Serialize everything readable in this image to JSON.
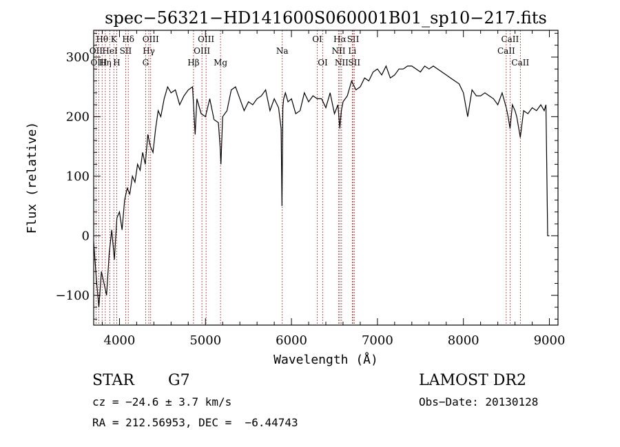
{
  "chart_data": {
    "type": "line",
    "title": "spec−56321−HD141600S060001B01_sp10−217.fits",
    "xlabel": "Wavelength (Å)",
    "ylabel": "Flux (relative)",
    "xlim": [
      3700,
      9100
    ],
    "ylim": [
      -150,
      345
    ],
    "xticks": [
      4000,
      5000,
      6000,
      7000,
      8000,
      9000
    ],
    "yticks": [
      -100,
      0,
      100,
      200,
      300
    ],
    "grid": false,
    "series": [
      {
        "x": [
          3700,
          3730,
          3760,
          3790,
          3820,
          3850,
          3880,
          3910,
          3940,
          3970,
          4000,
          4030,
          4060,
          4090,
          4120,
          4150,
          4180,
          4210,
          4240,
          4270,
          4300,
          4330,
          4360,
          4390,
          4420,
          4450,
          4480,
          4520,
          4560,
          4600,
          4650,
          4700,
          4750,
          4800,
          4850,
          4880,
          4900,
          4950,
          5000,
          5050,
          5100,
          5150,
          5170,
          5180,
          5200,
          5250,
          5300,
          5350,
          5400,
          5450,
          5500,
          5550,
          5600,
          5650,
          5700,
          5750,
          5800,
          5850,
          5880,
          5890,
          5900,
          5910,
          5930,
          5960,
          6000,
          6050,
          6100,
          6150,
          6200,
          6250,
          6300,
          6350,
          6400,
          6450,
          6500,
          6540,
          6563,
          6580,
          6600,
          6650,
          6700,
          6750,
          6800,
          6850,
          6900,
          6950,
          7000,
          7050,
          7100,
          7150,
          7200,
          7250,
          7300,
          7350,
          7400,
          7450,
          7500,
          7550,
          7600,
          7650,
          7700,
          7750,
          7800,
          7850,
          7900,
          7950,
          8000,
          8050,
          8100,
          8150,
          8200,
          8250,
          8300,
          8350,
          8400,
          8450,
          8498,
          8520,
          8542,
          8570,
          8600,
          8620,
          8662,
          8700,
          8750,
          8800,
          8850,
          8900,
          8940,
          8960,
          8980,
          9000
        ],
        "y": [
          -10,
          -70,
          -120,
          -60,
          -80,
          -100,
          -30,
          10,
          -40,
          30,
          40,
          10,
          60,
          80,
          70,
          100,
          90,
          120,
          110,
          140,
          120,
          170,
          150,
          140,
          180,
          210,
          200,
          230,
          250,
          240,
          245,
          220,
          235,
          245,
          250,
          170,
          230,
          205,
          200,
          230,
          195,
          190,
          150,
          120,
          200,
          210,
          245,
          250,
          230,
          210,
          225,
          220,
          230,
          235,
          245,
          210,
          230,
          215,
          180,
          50,
          215,
          230,
          240,
          225,
          230,
          205,
          210,
          240,
          225,
          235,
          230,
          230,
          215,
          240,
          205,
          220,
          180,
          210,
          225,
          235,
          260,
          245,
          250,
          265,
          260,
          275,
          280,
          270,
          285,
          265,
          270,
          280,
          280,
          285,
          285,
          280,
          275,
          285,
          280,
          285,
          280,
          275,
          270,
          265,
          260,
          255,
          240,
          200,
          245,
          235,
          235,
          240,
          235,
          230,
          220,
          240,
          215,
          200,
          180,
          220,
          210,
          200,
          165,
          210,
          205,
          215,
          210,
          220,
          210,
          220,
          0,
          0
        ]
      }
    ],
    "spectral_lines": [
      {
        "label": "Hθ",
        "wavelength": 3798,
        "row": 0
      },
      {
        "label": "OII",
        "wavelength": 3727,
        "row": 1
      },
      {
        "label": "OIII",
        "wavelength": 3760,
        "row": 2
      },
      {
        "label": "Hη",
        "wavelength": 3835,
        "row": 2
      },
      {
        "label": "K",
        "wavelength": 3934,
        "row": 0
      },
      {
        "label": "HeI",
        "wavelength": 3889,
        "row": 1
      },
      {
        "label": "H",
        "wavelength": 3968,
        "row": 2
      },
      {
        "label": "SII",
        "wavelength": 4072,
        "row": 1
      },
      {
        "label": "Hδ",
        "wavelength": 4102,
        "row": 0
      },
      {
        "label": "OIII",
        "wavelength": 4363,
        "row": 0
      },
      {
        "label": "Hγ",
        "wavelength": 4341,
        "row": 1
      },
      {
        "label": "G",
        "wavelength": 4304,
        "row": 2
      },
      {
        "label": "Hβ",
        "wavelength": 4861,
        "row": 2
      },
      {
        "label": "OIII",
        "wavelength": 5007,
        "row": 0
      },
      {
        "label": "OIII",
        "wavelength": 4959,
        "row": 1
      },
      {
        "label": "Mg",
        "wavelength": 5175,
        "row": 2
      },
      {
        "label": "Na",
        "wavelength": 5893,
        "row": 1
      },
      {
        "label": "OI",
        "wavelength": 6300,
        "row": 0
      },
      {
        "label": "OI",
        "wavelength": 6364,
        "row": 2
      },
      {
        "label": "Hα",
        "wavelength": 6563,
        "row": 0
      },
      {
        "label": "NII",
        "wavelength": 6548,
        "row": 1
      },
      {
        "label": "NII",
        "wavelength": 6583,
        "row": 2
      },
      {
        "label": "SII",
        "wavelength": 6717,
        "row": 0
      },
      {
        "label": "Li",
        "wavelength": 6707,
        "row": 1
      },
      {
        "label": "SII",
        "wavelength": 6731,
        "row": 2
      },
      {
        "label": "CaII",
        "wavelength": 8542,
        "row": 0
      },
      {
        "label": "CaII",
        "wavelength": 8498,
        "row": 1
      },
      {
        "label": "CaII",
        "wavelength": 8662,
        "row": 2
      }
    ]
  },
  "info": {
    "class": "STAR",
    "subclass": "G7",
    "cz": "cz = −24.6 ± 3.7 km/s",
    "radec": "RA = 212.56953, DEC =  −6.44743",
    "survey": "LAMOST DR2",
    "obsdate": "Obs−Date: 20130128"
  },
  "colors": {
    "line": "#000000",
    "marker": "#a52a2a"
  }
}
